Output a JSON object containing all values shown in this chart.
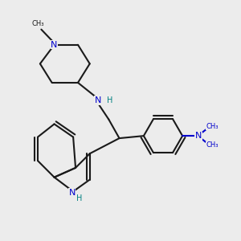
{
  "bg_color": "#ececec",
  "bond_color": "#1a1a1a",
  "N_color": "#0000cc",
  "NH_color": "#008080",
  "lw": 1.5,
  "xlim": [
    0,
    10
  ],
  "ylim": [
    0,
    10
  ]
}
